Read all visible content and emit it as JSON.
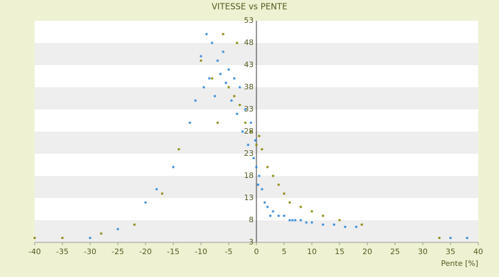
{
  "chart_data": {
    "type": "scatter",
    "title": "VITESSE vs PENTE",
    "x_label": "Pente [%]",
    "xlim": [
      -40,
      40
    ],
    "xticks": [
      -40,
      -35,
      -30,
      -25,
      -20,
      -15,
      -10,
      -5,
      0,
      5,
      10,
      15,
      20,
      25,
      30,
      35,
      40
    ],
    "ylim": [
      3,
      53
    ],
    "yticks": [
      3,
      8,
      13,
      18,
      23,
      28,
      33,
      38,
      43,
      48,
      53
    ],
    "grid": true,
    "series": [
      {
        "color": "#8c8c10",
        "x": [
          -10,
          -8,
          -6,
          -5,
          -4,
          -3,
          -2,
          -1,
          0,
          0.5,
          1,
          2,
          3,
          4,
          5,
          6,
          8,
          10,
          12,
          15,
          19,
          -14,
          -17,
          -22,
          -28,
          -35,
          -40,
          33,
          -7,
          -3.5
        ],
        "values": [
          44,
          40,
          50,
          38,
          36,
          34,
          30,
          28,
          25,
          27,
          24,
          20,
          18,
          16,
          14,
          12,
          11,
          10,
          9,
          8,
          7,
          24,
          14,
          7,
          5,
          4,
          4,
          4,
          30,
          48
        ]
      },
      {
        "color": "#3a8ed8",
        "x": [
          -10,
          -9,
          -8,
          -7,
          -6,
          -5,
          -4,
          -3,
          -2,
          -1,
          -11,
          -12,
          -9.5,
          -8.5,
          -7.5,
          -6.5,
          -5.5,
          -4.5,
          -3.5,
          -2.5,
          -1.5,
          -0.5,
          0,
          0.5,
          1,
          1.5,
          2,
          3,
          4,
          5,
          6,
          7,
          8,
          9,
          10,
          12,
          14,
          16,
          18,
          -15,
          -18,
          -20,
          -25,
          -30,
          35,
          38,
          -0.2,
          0.3,
          2.5,
          6.5
        ],
        "values": [
          45,
          50,
          48,
          44,
          46,
          42,
          40,
          38,
          33,
          30,
          35,
          30,
          38,
          40,
          36,
          41,
          39,
          35,
          32,
          28,
          25,
          22,
          20,
          18,
          15,
          12,
          11,
          10,
          9,
          9,
          8,
          8,
          8,
          7.5,
          7.5,
          7,
          7,
          6.5,
          6.5,
          20,
          15,
          12,
          6,
          4,
          4,
          4,
          26,
          16,
          9,
          8
        ]
      }
    ]
  }
}
